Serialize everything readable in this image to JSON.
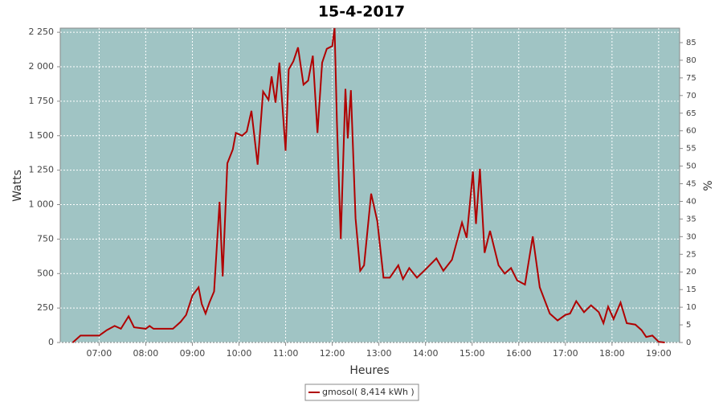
{
  "chart_data": {
    "type": "line",
    "title": "15-4-2017",
    "x_label": "Heures",
    "y_label": "Watts",
    "y2_label": "%",
    "x": [
      "06:26",
      "06:36",
      "07:00",
      "07:10",
      "07:20",
      "07:28",
      "07:38",
      "07:45",
      "08:00",
      "08:05",
      "08:10",
      "08:35",
      "08:45",
      "08:52",
      "09:00",
      "09:08",
      "09:12",
      "09:17",
      "09:22",
      "09:28",
      "09:35",
      "09:39",
      "09:45",
      "09:52",
      "09:56",
      "10:04",
      "10:10",
      "10:16",
      "10:24",
      "10:31",
      "10:38",
      "10:42",
      "10:47",
      "10:52",
      "11:00",
      "11:04",
      "11:10",
      "11:16",
      "11:23",
      "11:29",
      "11:35",
      "11:41",
      "11:47",
      "11:53",
      "12:00",
      "12:03",
      "12:06",
      "12:11",
      "12:17",
      "12:20",
      "12:24",
      "12:30",
      "12:36",
      "12:41",
      "12:50",
      "12:58",
      "13:06",
      "13:14",
      "13:25",
      "13:31",
      "13:39",
      "13:49",
      "14:00",
      "14:14",
      "14:23",
      "14:34",
      "14:47",
      "14:53",
      "15:01",
      "15:05",
      "15:10",
      "15:16",
      "15:23",
      "15:34",
      "15:42",
      "15:50",
      "15:58",
      "16:08",
      "16:18",
      "16:27",
      "16:40",
      "16:50",
      "17:00",
      "17:06",
      "17:14",
      "17:24",
      "17:33",
      "17:43",
      "17:49",
      "17:55",
      "18:02",
      "18:11",
      "18:19",
      "18:30",
      "18:38",
      "18:44",
      "18:52",
      "19:00",
      "19:08"
    ],
    "series": [
      {
        "name": "gmosol( 8,414 kWh )",
        "color": "#b00000",
        "values": [
          0,
          50,
          50,
          90,
          120,
          100,
          190,
          110,
          100,
          120,
          100,
          100,
          150,
          200,
          340,
          400,
          280,
          210,
          290,
          370,
          1020,
          480,
          1300,
          1400,
          1520,
          1500,
          1530,
          1680,
          1290,
          1820,
          1760,
          1930,
          1740,
          2030,
          1390,
          1980,
          2040,
          2140,
          1870,
          1900,
          2080,
          1520,
          2030,
          2130,
          2150,
          2280,
          1600,
          750,
          1840,
          1480,
          1830,
          900,
          520,
          560,
          1080,
          880,
          470,
          470,
          560,
          460,
          540,
          470,
          530,
          610,
          520,
          600,
          870,
          760,
          1240,
          860,
          1260,
          650,
          810,
          560,
          500,
          540,
          450,
          420,
          770,
          400,
          210,
          160,
          200,
          210,
          300,
          220,
          270,
          220,
          140,
          260,
          170,
          290,
          140,
          130,
          90,
          40,
          50,
          5,
          0
        ]
      }
    ],
    "xlim": [
      "06:10",
      "19:27"
    ],
    "xticks": [
      "07:00",
      "08:00",
      "09:00",
      "10:00",
      "11:00",
      "12:00",
      "13:00",
      "14:00",
      "15:00",
      "16:00",
      "17:00",
      "18:00",
      "19:00"
    ],
    "ylim": [
      0,
      2280
    ],
    "yticks": [
      0,
      250,
      500,
      750,
      {
        "value": 1000,
        "label": "1 000"
      },
      {
        "value": 1250,
        "label": "1 250"
      },
      {
        "value": 1500,
        "label": "1 500"
      },
      {
        "value": 1750,
        "label": "1 750"
      },
      {
        "value": 2000,
        "label": "2 000"
      },
      {
        "value": 2250,
        "label": "2 250"
      }
    ],
    "y2lim": [
      0,
      89.1
    ],
    "y2ticks": [
      0,
      5,
      10,
      15,
      20,
      25,
      30,
      35,
      40,
      45,
      50,
      55,
      60,
      65,
      70,
      75,
      80,
      85
    ],
    "grid": true
  }
}
